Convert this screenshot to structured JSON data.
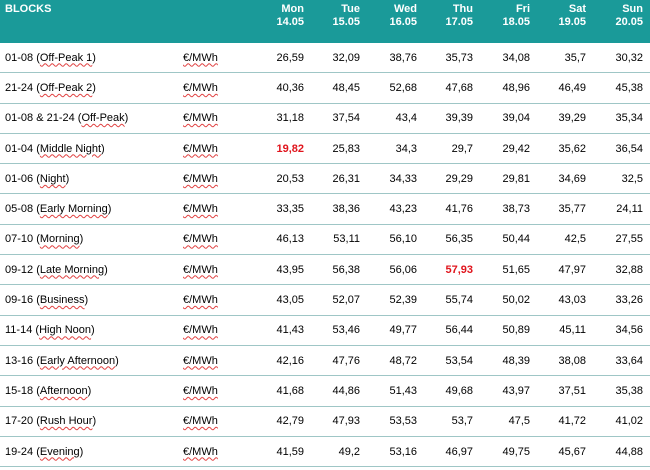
{
  "header": {
    "blocks_label": "BLOCKS",
    "unit_label": "",
    "days": [
      {
        "name": "Mon",
        "date": "14.05"
      },
      {
        "name": "Tue",
        "date": "15.05"
      },
      {
        "name": "Wed",
        "date": "16.05"
      },
      {
        "name": "Thu",
        "date": "17.05"
      },
      {
        "name": "Fri",
        "date": "18.05"
      },
      {
        "name": "Sat",
        "date": "19.05"
      },
      {
        "name": "Sun",
        "date": "20.05"
      }
    ]
  },
  "highlight_color": "#e0141c",
  "rows": [
    {
      "code": "01-08",
      "name": "Off-Peak 1",
      "unit": "€/MWh",
      "values": [
        "26,59",
        "32,09",
        "38,76",
        "35,73",
        "34,08",
        "35,7",
        "30,32"
      ],
      "highlight": []
    },
    {
      "code": "21-24",
      "name": "Off-Peak 2",
      "unit": "€/MWh",
      "values": [
        "40,36",
        "48,45",
        "52,68",
        "47,68",
        "48,96",
        "46,49",
        "45,38"
      ],
      "highlight": []
    },
    {
      "code": "01-08 & 21-24",
      "name": "Off-Peak",
      "unit": "€/MWh",
      "values": [
        "31,18",
        "37,54",
        "43,4",
        "39,39",
        "39,04",
        "39,29",
        "35,34"
      ],
      "highlight": []
    },
    {
      "code": "01-04",
      "name": "Middle Night",
      "unit": "€/MWh",
      "values": [
        "19,82",
        "25,83",
        "34,3",
        "29,7",
        "29,42",
        "35,62",
        "36,54"
      ],
      "highlight": [
        0
      ]
    },
    {
      "code": "01-06",
      "name": "Night",
      "unit": "€/MWh",
      "values": [
        "20,53",
        "26,31",
        "34,33",
        "29,29",
        "29,81",
        "34,69",
        "32,5"
      ],
      "highlight": []
    },
    {
      "code": "05-08",
      "name": "Early Morning",
      "unit": "€/MWh",
      "values": [
        "33,35",
        "38,36",
        "43,23",
        "41,76",
        "38,73",
        "35,77",
        "24,11"
      ],
      "highlight": []
    },
    {
      "code": "07-10",
      "name": "Morning",
      "unit": "€/MWh",
      "values": [
        "46,13",
        "53,11",
        "56,10",
        "56,35",
        "50,44",
        "42,5",
        "27,55"
      ],
      "highlight": []
    },
    {
      "code": "09-12",
      "name": "Late Morning",
      "unit": "€/MWh",
      "values": [
        "43,95",
        "56,38",
        "56,06",
        "57,93",
        "51,65",
        "47,97",
        "32,88"
      ],
      "highlight": [
        3
      ]
    },
    {
      "code": "09-16",
      "name": "Business",
      "unit": "€/MWh",
      "values": [
        "43,05",
        "52,07",
        "52,39",
        "55,74",
        "50,02",
        "43,03",
        "33,26"
      ],
      "highlight": []
    },
    {
      "code": "11-14",
      "name": "High Noon",
      "unit": "€/MWh",
      "values": [
        "41,43",
        "53,46",
        "49,77",
        "56,44",
        "50,89",
        "45,11",
        "34,56"
      ],
      "highlight": []
    },
    {
      "code": "13-16",
      "name": "Early Afternoon",
      "unit": "€/MWh",
      "values": [
        "42,16",
        "47,76",
        "48,72",
        "53,54",
        "48,39",
        "38,08",
        "33,64"
      ],
      "highlight": []
    },
    {
      "code": "15-18",
      "name": "Afternoon",
      "unit": "€/MWh",
      "values": [
        "41,68",
        "44,86",
        "51,43",
        "49,68",
        "43,97",
        "37,51",
        "35,38"
      ],
      "highlight": []
    },
    {
      "code": "17-20",
      "name": "Rush Hour",
      "unit": "€/MWh",
      "values": [
        "42,79",
        "47,93",
        "53,53",
        "53,7",
        "47,5",
        "41,72",
        "41,02"
      ],
      "highlight": []
    },
    {
      "code": "19-24",
      "name": "Evening",
      "unit": "€/MWh",
      "values": [
        "41,59",
        "49,2",
        "53,16",
        "46,97",
        "49,75",
        "45,67",
        "44,88"
      ],
      "highlight": []
    }
  ]
}
